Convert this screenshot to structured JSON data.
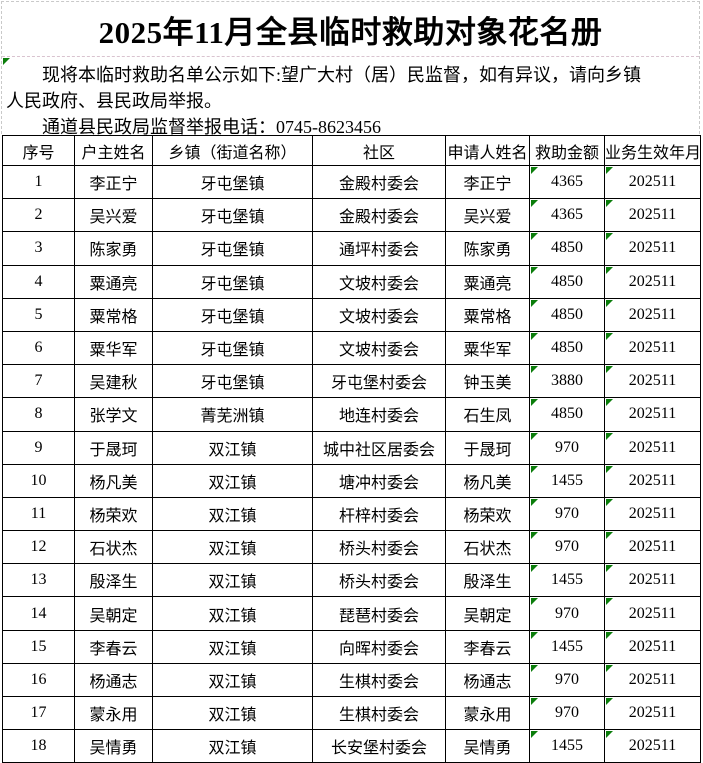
{
  "page": {
    "title": "2025年11月全县临时救助对象花名册",
    "notice": {
      "line1": "现将本临时救助名单公示如下:望广大村（居）民监督，如有异议，请向乡镇",
      "line2": "人民政府、县民政局举报。",
      "line3": "通道县民政局监督举报电话：0745-8623456"
    }
  },
  "table": {
    "headers": [
      "序号",
      "户主姓名",
      "乡镇（街道名称）",
      "社区",
      "申请人姓名",
      "救助金额",
      "业务生效年月"
    ],
    "rows": [
      {
        "seq": "1",
        "householder": "李正宁",
        "township": "牙屯堡镇",
        "community": "金殿村委会",
        "applicant": "李正宁",
        "amount": "4365",
        "month": "202511"
      },
      {
        "seq": "2",
        "householder": "吴兴爱",
        "township": "牙屯堡镇",
        "community": "金殿村委会",
        "applicant": "吴兴爱",
        "amount": "4365",
        "month": "202511"
      },
      {
        "seq": "3",
        "householder": "陈家勇",
        "township": "牙屯堡镇",
        "community": "通坪村委会",
        "applicant": "陈家勇",
        "amount": "4850",
        "month": "202511"
      },
      {
        "seq": "4",
        "householder": "粟通亮",
        "township": "牙屯堡镇",
        "community": "文坡村委会",
        "applicant": "粟通亮",
        "amount": "4850",
        "month": "202511"
      },
      {
        "seq": "5",
        "householder": "粟常格",
        "township": "牙屯堡镇",
        "community": "文坡村委会",
        "applicant": "粟常格",
        "amount": "4850",
        "month": "202511"
      },
      {
        "seq": "6",
        "householder": "粟华军",
        "township": "牙屯堡镇",
        "community": "文坡村委会",
        "applicant": "粟华军",
        "amount": "4850",
        "month": "202511"
      },
      {
        "seq": "7",
        "householder": "吴建秋",
        "township": "牙屯堡镇",
        "community": "牙屯堡村委会",
        "applicant": "钟玉美",
        "amount": "3880",
        "month": "202511"
      },
      {
        "seq": "8",
        "householder": "张学文",
        "township": "菁芜洲镇",
        "community": "地连村委会",
        "applicant": "石生凤",
        "amount": "4850",
        "month": "202511"
      },
      {
        "seq": "9",
        "householder": "于晟珂",
        "township": "双江镇",
        "community": "城中社区居委会",
        "applicant": "于晟珂",
        "amount": "970",
        "month": "202511"
      },
      {
        "seq": "10",
        "householder": "杨凡美",
        "township": "双江镇",
        "community": "塘冲村委会",
        "applicant": "杨凡美",
        "amount": "1455",
        "month": "202511"
      },
      {
        "seq": "11",
        "householder": "杨荣欢",
        "township": "双江镇",
        "community": "杆梓村委会",
        "applicant": "杨荣欢",
        "amount": "970",
        "month": "202511"
      },
      {
        "seq": "12",
        "householder": "石状杰",
        "township": "双江镇",
        "community": "桥头村委会",
        "applicant": "石状杰",
        "amount": "970",
        "month": "202511"
      },
      {
        "seq": "13",
        "householder": "殷泽生",
        "township": "双江镇",
        "community": "桥头村委会",
        "applicant": "殷泽生",
        "amount": "1455",
        "month": "202511"
      },
      {
        "seq": "14",
        "householder": "吴朝定",
        "township": "双江镇",
        "community": "琵琶村委会",
        "applicant": "吴朝定",
        "amount": "970",
        "month": "202511"
      },
      {
        "seq": "15",
        "householder": "李春云",
        "township": "双江镇",
        "community": "向晖村委会",
        "applicant": "李春云",
        "amount": "1455",
        "month": "202511"
      },
      {
        "seq": "16",
        "householder": "杨通志",
        "township": "双江镇",
        "community": "生棋村委会",
        "applicant": "杨通志",
        "amount": "970",
        "month": "202511"
      },
      {
        "seq": "17",
        "householder": "蒙永用",
        "township": "双江镇",
        "community": "生棋村委会",
        "applicant": "蒙永用",
        "amount": "970",
        "month": "202511"
      },
      {
        "seq": "18",
        "householder": "吴情勇",
        "township": "双江镇",
        "community": "长安堡村委会",
        "applicant": "吴情勇",
        "amount": "1455",
        "month": "202511"
      }
    ]
  },
  "colors": {
    "error_indicator_green": "#0b7d0b",
    "table_border": "#000000"
  }
}
